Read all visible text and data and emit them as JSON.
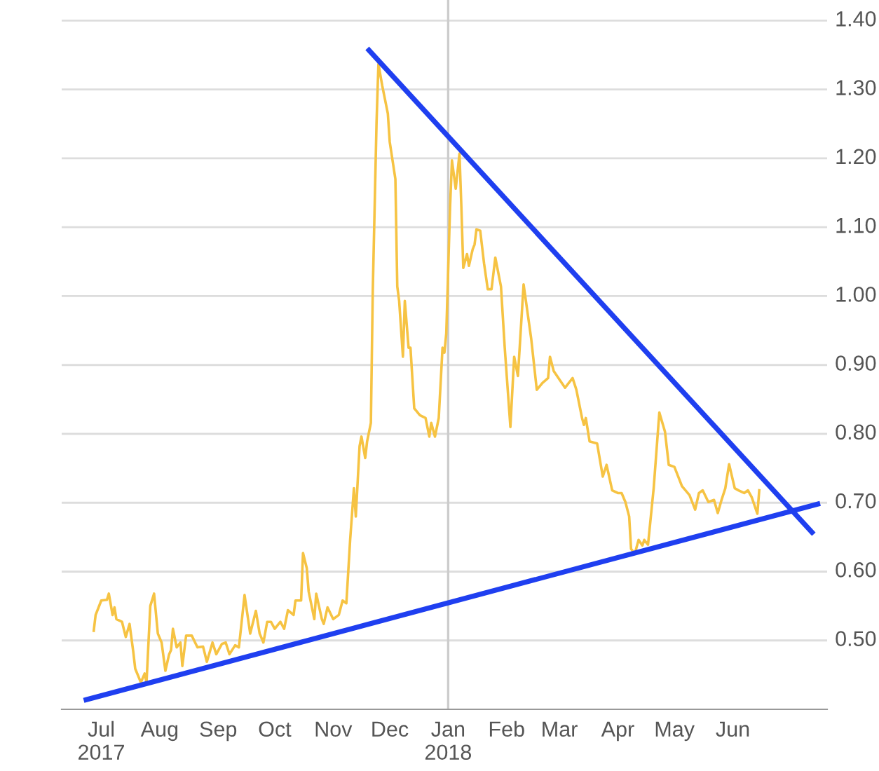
{
  "chart_data": {
    "type": "line",
    "xlim": [
      "2017-06-10",
      "2018-07-21"
    ],
    "ylim": [
      0.4,
      1.43
    ],
    "xticks": [
      {
        "value": "2017-07-01",
        "label": "Jul\n2017"
      },
      {
        "value": "2017-08-01",
        "label": "Aug"
      },
      {
        "value": "2017-09-01",
        "label": "Sep"
      },
      {
        "value": "2017-10-01",
        "label": "Oct"
      },
      {
        "value": "2017-11-01",
        "label": "Nov"
      },
      {
        "value": "2017-12-01",
        "label": "Dec"
      },
      {
        "value": "2018-01-01",
        "label": "Jan\n2018"
      },
      {
        "value": "2018-02-01",
        "label": "Feb"
      },
      {
        "value": "2018-03-01",
        "label": "Mar"
      },
      {
        "value": "2018-04-01",
        "label": "Apr"
      },
      {
        "value": "2018-05-01",
        "label": "May"
      },
      {
        "value": "2018-06-01",
        "label": "Jun"
      }
    ],
    "yticks": [
      {
        "value": 0.5,
        "label": "0.50"
      },
      {
        "value": 0.6,
        "label": "0.60"
      },
      {
        "value": 0.7,
        "label": "0.70"
      },
      {
        "value": 0.8,
        "label": "0.80"
      },
      {
        "value": 0.9,
        "label": "0.90"
      },
      {
        "value": 1.0,
        "label": "1.00"
      },
      {
        "value": 1.1,
        "label": "1.10"
      },
      {
        "value": 1.2,
        "label": "1.20"
      },
      {
        "value": 1.3,
        "label": "1.30"
      },
      {
        "value": 1.4,
        "label": "1.40"
      }
    ],
    "grid": "y",
    "ref_lines": [
      {
        "axis": "x",
        "value": "2018-01-01",
        "label": null,
        "color": "#cccccc"
      }
    ],
    "series": [
      {
        "color": "#f6c343",
        "x": [
          "2017-06-27",
          "2017-06-28",
          "2017-07-01",
          "2017-07-04",
          "2017-07-05",
          "2017-07-07",
          "2017-07-08",
          "2017-07-09",
          "2017-07-12",
          "2017-07-14",
          "2017-07-16",
          "2017-07-18",
          "2017-07-19",
          "2017-07-22",
          "2017-07-24",
          "2017-07-25",
          "2017-07-27",
          "2017-07-29",
          "2017-07-31",
          "2017-08-02",
          "2017-08-04",
          "2017-08-06",
          "2017-08-07",
          "2017-08-08",
          "2017-08-10",
          "2017-08-12",
          "2017-08-13",
          "2017-08-15",
          "2017-08-18",
          "2017-08-21",
          "2017-08-24",
          "2017-08-26",
          "2017-08-29",
          "2017-08-31",
          "2017-09-03",
          "2017-09-05",
          "2017-09-07",
          "2017-09-10",
          "2017-09-12",
          "2017-09-15",
          "2017-09-18",
          "2017-09-21",
          "2017-09-23",
          "2017-09-25",
          "2017-09-27",
          "2017-09-29",
          "2017-10-01",
          "2017-10-04",
          "2017-10-06",
          "2017-10-08",
          "2017-10-11",
          "2017-10-12",
          "2017-10-15",
          "2017-10-16",
          "2017-10-18",
          "2017-10-19",
          "2017-10-22",
          "2017-10-23",
          "2017-10-26",
          "2017-10-27",
          "2017-10-29",
          "2017-11-01",
          "2017-11-04",
          "2017-11-06",
          "2017-11-08",
          "2017-11-10",
          "2017-11-12",
          "2017-11-13",
          "2017-11-15",
          "2017-11-16",
          "2017-11-18",
          "2017-11-19",
          "2017-11-21",
          "2017-11-22",
          "2017-11-24",
          "2017-11-25",
          "2017-11-27",
          "2017-11-30",
          "2017-12-01",
          "2017-12-04",
          "2017-12-05",
          "2017-12-06",
          "2017-12-08",
          "2017-12-09",
          "2017-12-11",
          "2017-12-12",
          "2017-12-14",
          "2017-12-17",
          "2017-12-20",
          "2017-12-22",
          "2017-12-23",
          "2017-12-25",
          "2017-12-27",
          "2017-12-29",
          "2017-12-30",
          "2017-12-31",
          "2018-01-02",
          "2018-01-03",
          "2018-01-05",
          "2018-01-07",
          "2018-01-08",
          "2018-01-09",
          "2018-01-11",
          "2018-01-12",
          "2018-01-14",
          "2018-01-15",
          "2018-01-16",
          "2018-01-18",
          "2018-01-20",
          "2018-01-22",
          "2018-01-24",
          "2018-01-26",
          "2018-01-29",
          "2018-01-31",
          "2018-02-03",
          "2018-02-05",
          "2018-02-07",
          "2018-02-10",
          "2018-02-14",
          "2018-02-17",
          "2018-02-20",
          "2018-02-23",
          "2018-02-24",
          "2018-02-26",
          "2018-03-04",
          "2018-03-08",
          "2018-03-10",
          "2018-03-13",
          "2018-03-14",
          "2018-03-15",
          "2018-03-17",
          "2018-03-21",
          "2018-03-24",
          "2018-03-26",
          "2018-03-29",
          "2018-04-01",
          "2018-04-03",
          "2018-04-05",
          "2018-04-07",
          "2018-04-08",
          "2018-04-10",
          "2018-04-12",
          "2018-04-14",
          "2018-04-15",
          "2018-04-17",
          "2018-04-20",
          "2018-04-23",
          "2018-04-26",
          "2018-04-28",
          "2018-05-01",
          "2018-05-05",
          "2018-05-09",
          "2018-05-12",
          "2018-05-14",
          "2018-05-16",
          "2018-05-19",
          "2018-05-22",
          "2018-05-24",
          "2018-05-26",
          "2018-05-28",
          "2018-05-30",
          "2018-06-02",
          "2018-06-04",
          "2018-06-07",
          "2018-06-09",
          "2018-06-11",
          "2018-06-14",
          "2018-06-15"
        ],
        "values": [
          0.514,
          0.537,
          0.558,
          0.559,
          0.568,
          0.537,
          0.548,
          0.531,
          0.527,
          0.505,
          0.524,
          0.483,
          0.459,
          0.439,
          0.452,
          0.439,
          0.55,
          0.568,
          0.51,
          0.497,
          0.456,
          0.48,
          0.486,
          0.517,
          0.49,
          0.497,
          0.463,
          0.507,
          0.507,
          0.49,
          0.491,
          0.469,
          0.497,
          0.48,
          0.495,
          0.497,
          0.48,
          0.493,
          0.49,
          0.566,
          0.51,
          0.543,
          0.51,
          0.497,
          0.527,
          0.527,
          0.517,
          0.527,
          0.517,
          0.544,
          0.537,
          0.558,
          0.558,
          0.627,
          0.605,
          0.571,
          0.531,
          0.568,
          0.531,
          0.524,
          0.548,
          0.531,
          0.537,
          0.558,
          0.554,
          0.646,
          0.721,
          0.68,
          0.782,
          0.796,
          0.765,
          0.789,
          0.816,
          1.007,
          1.252,
          1.337,
          1.306,
          1.265,
          1.224,
          1.17,
          1.014,
          0.993,
          0.912,
          0.993,
          0.925,
          0.925,
          0.837,
          0.827,
          0.823,
          0.796,
          0.816,
          0.796,
          0.823,
          0.925,
          0.918,
          0.946,
          1.129,
          1.197,
          1.156,
          1.207,
          1.129,
          1.041,
          1.061,
          1.044,
          1.068,
          1.075,
          1.097,
          1.095,
          1.048,
          1.01,
          1.01,
          1.056,
          1.014,
          0.925,
          0.81,
          0.912,
          0.884,
          1.017,
          0.939,
          0.864,
          0.874,
          0.881,
          0.912,
          0.891,
          0.867,
          0.881,
          0.864,
          0.823,
          0.813,
          0.823,
          0.789,
          0.786,
          0.738,
          0.755,
          0.718,
          0.714,
          0.714,
          0.701,
          0.68,
          0.633,
          0.626,
          0.646,
          0.638,
          0.646,
          0.639,
          0.721,
          0.831,
          0.803,
          0.755,
          0.752,
          0.724,
          0.711,
          0.69,
          0.714,
          0.718,
          0.701,
          0.704,
          0.685,
          0.704,
          0.721,
          0.756,
          0.721,
          0.718,
          0.714,
          0.718,
          0.708,
          0.684,
          0.718
        ]
      },
      {
        "color": "#1f3ff0",
        "x": [
          "2017-06-23",
          "2018-07-16"
        ],
        "values": [
          0.414,
          0.698
        ]
      },
      {
        "color": "#1f3ff0",
        "x": [
          "2017-11-20",
          "2018-07-13"
        ],
        "values": [
          1.357,
          0.657
        ]
      }
    ]
  }
}
